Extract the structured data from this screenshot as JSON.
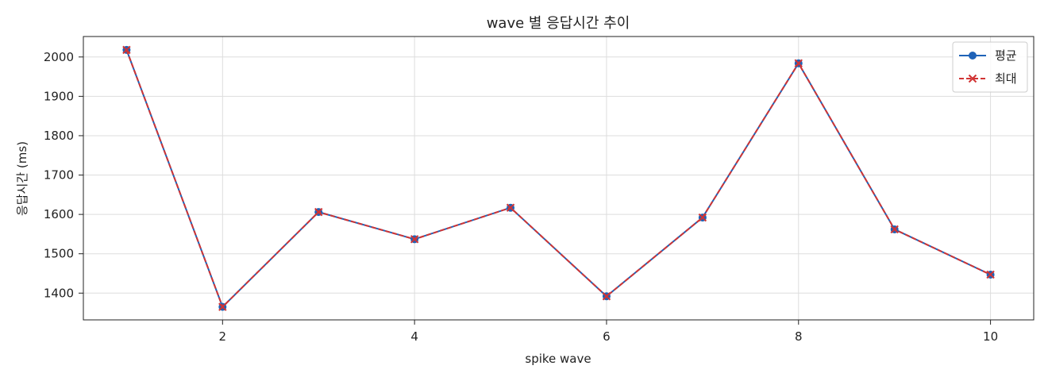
{
  "chart_data": {
    "type": "line",
    "title": "wave 별 응답시간 추이",
    "xlabel": "spike wave",
    "ylabel": "응답시간 (ms)",
    "x": [
      1,
      2,
      3,
      4,
      5,
      6,
      7,
      8,
      9,
      10
    ],
    "xlim": [
      0.55,
      10.45
    ],
    "ylim": [
      1332,
      2052
    ],
    "x_ticks": [
      2,
      4,
      6,
      8,
      10
    ],
    "y_ticks": [
      1400,
      1500,
      1600,
      1700,
      1800,
      1900,
      2000
    ],
    "grid": true,
    "legend_position": "top-right",
    "series": [
      {
        "name": "평균",
        "values": [
          2018,
          1365,
          1606,
          1537,
          1617,
          1392,
          1592,
          1984,
          1562,
          1447
        ],
        "color": "#1f63b8",
        "line_style": "solid",
        "marker": "circle"
      },
      {
        "name": "최대",
        "values": [
          2018,
          1365,
          1606,
          1537,
          1617,
          1392,
          1592,
          1984,
          1562,
          1447
        ],
        "color": "#d13434",
        "line_style": "dashed",
        "marker": "x"
      }
    ]
  }
}
